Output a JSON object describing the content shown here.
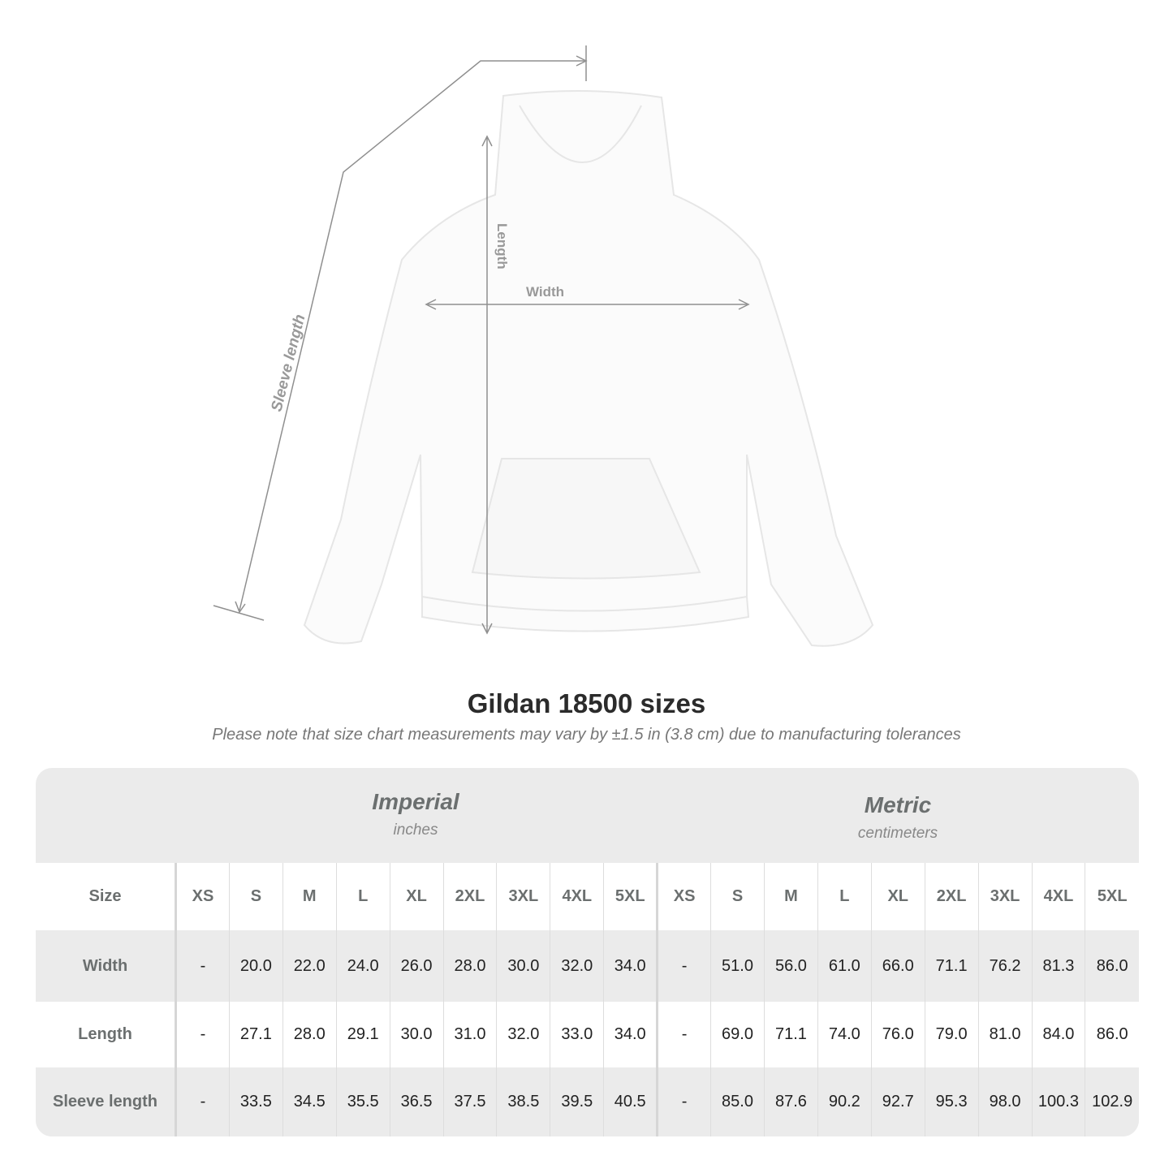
{
  "diagram": {
    "labels": {
      "length": "Length",
      "width": "Width",
      "sleeve": "Sleeve length"
    }
  },
  "title": "Gildan 18500 sizes",
  "note": "Please note that size chart measurements may vary by ±1.5 in (3.8 cm) due to manufacturing tolerances",
  "imperial": {
    "name": "Imperial",
    "unit": "inches"
  },
  "metric": {
    "name": "Metric",
    "unit": "centimeters"
  },
  "size_label": "Size",
  "sizes": [
    "XS",
    "S",
    "M",
    "L",
    "XL",
    "2XL",
    "3XL",
    "4XL",
    "5XL"
  ],
  "rows": [
    {
      "label": "Width",
      "imperial": [
        "-",
        "20.0",
        "22.0",
        "24.0",
        "26.0",
        "28.0",
        "30.0",
        "32.0",
        "34.0"
      ],
      "metric": [
        "-",
        "51.0",
        "56.0",
        "61.0",
        "66.0",
        "71.1",
        "76.2",
        "81.3",
        "86.0"
      ]
    },
    {
      "label": "Length",
      "imperial": [
        "-",
        "27.1",
        "28.0",
        "29.1",
        "30.0",
        "31.0",
        "32.0",
        "33.0",
        "34.0"
      ],
      "metric": [
        "-",
        "69.0",
        "71.1",
        "74.0",
        "76.0",
        "79.0",
        "81.0",
        "84.0",
        "86.0"
      ]
    },
    {
      "label": "Sleeve length",
      "imperial": [
        "-",
        "33.5",
        "34.5",
        "35.5",
        "36.5",
        "37.5",
        "38.5",
        "39.5",
        "40.5"
      ],
      "metric": [
        "-",
        "85.0",
        "87.6",
        "90.2",
        "92.7",
        "95.3",
        "98.0",
        "100.3",
        "102.9"
      ]
    }
  ]
}
